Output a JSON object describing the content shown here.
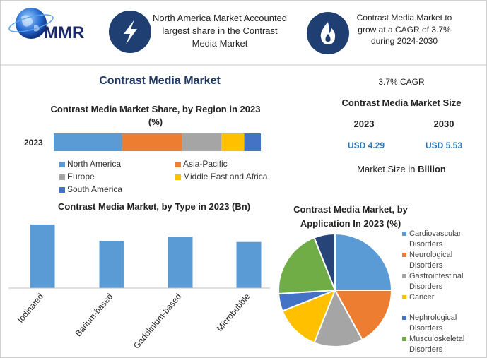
{
  "header": {
    "logo": "MMR",
    "highlight": "North America Market Accounted largest share in the Contrast Media Market",
    "cagr_note": "Contrast Media Market to grow at a CAGR of 3.7% during 2024-2030"
  },
  "title": "Contrast Media Market",
  "market_size": {
    "cagr": "3.7% CAGR",
    "title": "Contrast Media Market Size",
    "years": [
      "2023",
      "2030"
    ],
    "values": [
      "USD 4.29",
      "USD 5.53"
    ],
    "unit_prefix": "Market Size in",
    "unit": "Billion"
  },
  "chart_data": [
    {
      "type": "stacked-bar",
      "title": "Contrast Media Market Share, by Region in 2023 (%)",
      "categories": [
        "2023"
      ],
      "xlim": [
        0,
        100
      ],
      "series": [
        {
          "name": "North America",
          "color": "#5b9bd5",
          "values": [
            33
          ]
        },
        {
          "name": "Asia-Pacific",
          "color": "#ed7d31",
          "values": [
            29
          ]
        },
        {
          "name": "Europe",
          "color": "#a5a5a5",
          "values": [
            19
          ]
        },
        {
          "name": "Middle East and Africa",
          "color": "#ffc000",
          "values": [
            11
          ]
        },
        {
          "name": "South America",
          "color": "#4472c4",
          "values": [
            8
          ]
        }
      ]
    },
    {
      "type": "bar",
      "title": "Contrast Media Market, by Type in 2023 (Bn)",
      "categories": [
        "Iodinated",
        "Barium-based",
        "Gadolinium-based",
        "Microbubble"
      ],
      "values": [
        1.31,
        0.97,
        1.06,
        0.95
      ],
      "color": "#5b9bd5",
      "ylim": [
        0,
        1.6
      ]
    },
    {
      "type": "pie",
      "title": "Contrast Media Market, by Application In 2023 (%)",
      "categories": [
        "Cardiovascular Disorders",
        "Neurological Disorders",
        "Gastrointestinal Disorders",
        "Cancer",
        "Nephrological Disorders",
        "Musculoskeletal Disorders",
        null
      ],
      "values": [
        25,
        17,
        14,
        13,
        5,
        20,
        6
      ],
      "colors": [
        "#5b9bd5",
        "#ed7d31",
        "#a5a5a5",
        "#ffc000",
        "#4472c4",
        "#70ad47",
        "#264478"
      ]
    }
  ]
}
